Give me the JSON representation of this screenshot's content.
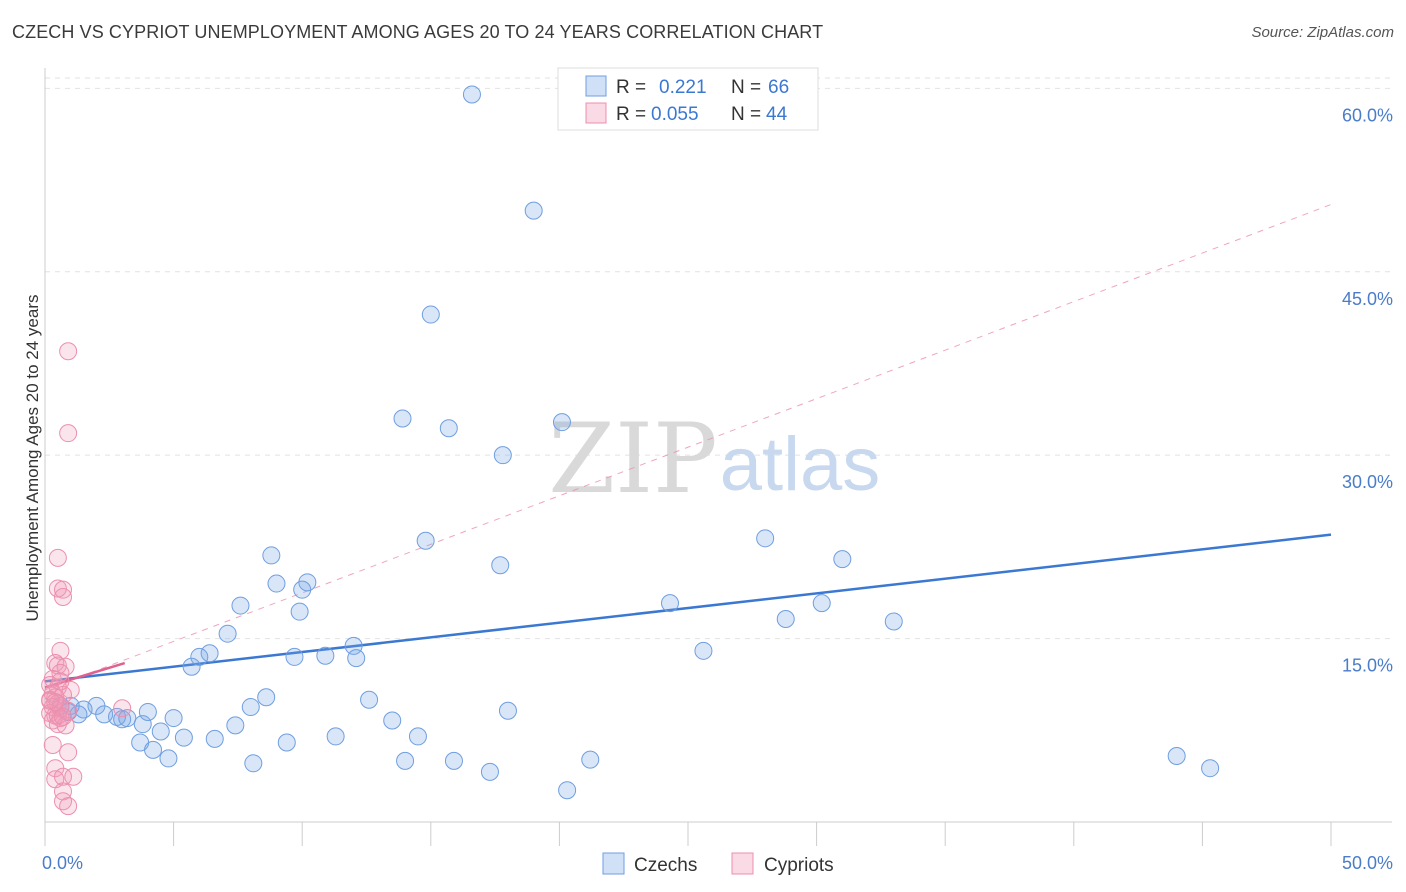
{
  "title": "CZECH VS CYPRIOT UNEMPLOYMENT AMONG AGES 20 TO 24 YEARS CORRELATION CHART",
  "source": "Source: ZipAtlas.com",
  "watermark": {
    "zip": "ZIP",
    "atlas": "atlas"
  },
  "colors": {
    "czech_fill": "rgba(120,165,230,0.28)",
    "czech_stroke": "#6f9ee0",
    "czech_line": "#3b78d2",
    "cypriot_fill": "rgba(240,150,180,0.25)",
    "cypriot_stroke": "#ec8fae",
    "cypriot_line": "#e06090",
    "tick_label": "#4a7cc9"
  },
  "legend_top": {
    "czechs": {
      "r_label": "R =",
      "r_value": "0.221",
      "n_label": "N =",
      "n_value": "66"
    },
    "cypriots": {
      "r_label": "R =",
      "r_value": "0.055",
      "n_label": "N =",
      "n_value": "44"
    }
  },
  "legend_bottom": {
    "czechs": "Czechs",
    "cypriots": "Cypriots"
  },
  "chart_data": {
    "type": "scatter",
    "ylabel": "Unemployment Among Ages 20 to 24 years",
    "xlabel": "",
    "xlim": [
      0,
      50
    ],
    "ylim": [
      0,
      61.5
    ],
    "x_tick_labels": [
      {
        "value": 0,
        "label": "0.0%"
      },
      {
        "value": 50,
        "label": "50.0%"
      }
    ],
    "y_tick_labels": [
      {
        "value": 15,
        "label": "15.0%"
      },
      {
        "value": 30,
        "label": "30.0%"
      },
      {
        "value": 45,
        "label": "45.0%"
      },
      {
        "value": 60,
        "label": "60.0%"
      }
    ],
    "series": [
      {
        "name": "Czechs",
        "R": 0.221,
        "N": 66,
        "trend": {
          "x": [
            0,
            50
          ],
          "y": [
            11.5,
            23.5
          ],
          "style": "solid"
        },
        "points": [
          [
            16.6,
            59.5
          ],
          [
            19.0,
            50.0
          ],
          [
            15.0,
            41.5
          ],
          [
            13.9,
            33.0
          ],
          [
            20.1,
            32.7
          ],
          [
            15.7,
            32.2
          ],
          [
            17.8,
            30.0
          ],
          [
            14.8,
            23.0
          ],
          [
            17.7,
            21.0
          ],
          [
            28.0,
            23.2
          ],
          [
            31.0,
            21.5
          ],
          [
            8.8,
            21.8
          ],
          [
            9.0,
            19.5
          ],
          [
            10.2,
            19.6
          ],
          [
            10.0,
            19.0
          ],
          [
            7.6,
            17.7
          ],
          [
            9.9,
            17.2
          ],
          [
            24.3,
            17.9
          ],
          [
            30.2,
            17.9
          ],
          [
            28.8,
            16.6
          ],
          [
            33.0,
            16.4
          ],
          [
            7.1,
            15.4
          ],
          [
            6.4,
            13.8
          ],
          [
            6.0,
            13.5
          ],
          [
            5.7,
            12.7
          ],
          [
            9.7,
            13.5
          ],
          [
            10.9,
            13.6
          ],
          [
            12.0,
            14.4
          ],
          [
            12.1,
            13.4
          ],
          [
            25.6,
            14.0
          ],
          [
            8.6,
            10.2
          ],
          [
            8.0,
            9.4
          ],
          [
            12.6,
            10.0
          ],
          [
            18.0,
            9.1
          ],
          [
            2.0,
            9.5
          ],
          [
            2.3,
            8.8
          ],
          [
            2.8,
            8.6
          ],
          [
            3.0,
            8.4
          ],
          [
            3.2,
            8.5
          ],
          [
            3.8,
            8.0
          ],
          [
            4.0,
            9.0
          ],
          [
            5.0,
            8.5
          ],
          [
            1.0,
            9.5
          ],
          [
            1.5,
            9.2
          ],
          [
            1.3,
            8.8
          ],
          [
            0.6,
            9.5
          ],
          [
            0.9,
            9.0
          ],
          [
            7.4,
            7.9
          ],
          [
            13.5,
            8.3
          ],
          [
            4.5,
            7.4
          ],
          [
            3.7,
            6.5
          ],
          [
            4.2,
            5.9
          ],
          [
            5.4,
            6.9
          ],
          [
            6.6,
            6.8
          ],
          [
            9.4,
            6.5
          ],
          [
            11.3,
            7.0
          ],
          [
            14.5,
            7.0
          ],
          [
            4.8,
            5.2
          ],
          [
            8.1,
            4.8
          ],
          [
            14.0,
            5.0
          ],
          [
            15.9,
            5.0
          ],
          [
            17.3,
            4.1
          ],
          [
            21.2,
            5.1
          ],
          [
            20.3,
            2.6
          ],
          [
            44.0,
            5.4
          ],
          [
            45.3,
            4.4
          ]
        ]
      },
      {
        "name": "Cypriots",
        "R": 0.055,
        "N": 44,
        "trend": {
          "x": [
            0,
            3.1
          ],
          "y": [
            11.0,
            13.0
          ],
          "style": "solid"
        },
        "trend_extended": {
          "x": [
            0,
            50
          ],
          "y": [
            10.8,
            50.5
          ],
          "style": "dashed"
        },
        "points": [
          [
            0.9,
            38.5
          ],
          [
            0.9,
            31.8
          ],
          [
            0.5,
            21.6
          ],
          [
            0.5,
            19.1
          ],
          [
            0.7,
            18.4
          ],
          [
            0.7,
            19.0
          ],
          [
            0.6,
            14.0
          ],
          [
            0.4,
            13.0
          ],
          [
            0.5,
            12.8
          ],
          [
            0.8,
            12.7
          ],
          [
            0.6,
            12.2
          ],
          [
            0.3,
            11.7
          ],
          [
            0.2,
            11.2
          ],
          [
            0.5,
            11.0
          ],
          [
            1.0,
            10.8
          ],
          [
            0.3,
            10.5
          ],
          [
            0.4,
            10.2
          ],
          [
            0.7,
            10.4
          ],
          [
            0.2,
            9.9
          ],
          [
            0.5,
            9.7
          ],
          [
            0.3,
            9.4
          ],
          [
            0.6,
            9.3
          ],
          [
            0.9,
            9.1
          ],
          [
            3.0,
            9.3
          ],
          [
            0.2,
            8.9
          ],
          [
            0.4,
            8.7
          ],
          [
            0.6,
            8.5
          ],
          [
            0.3,
            8.3
          ],
          [
            0.5,
            8.0
          ],
          [
            0.8,
            7.9
          ],
          [
            0.3,
            6.3
          ],
          [
            0.9,
            5.7
          ],
          [
            0.4,
            4.4
          ],
          [
            0.4,
            3.5
          ],
          [
            0.7,
            3.7
          ],
          [
            1.1,
            3.7
          ],
          [
            0.7,
            2.5
          ],
          [
            0.7,
            1.7
          ],
          [
            0.9,
            1.3
          ],
          [
            0.5,
            8.7
          ],
          [
            0.2,
            10.0
          ],
          [
            0.6,
            11.5
          ],
          [
            0.4,
            9.8
          ],
          [
            0.7,
            8.6
          ]
        ]
      }
    ]
  }
}
